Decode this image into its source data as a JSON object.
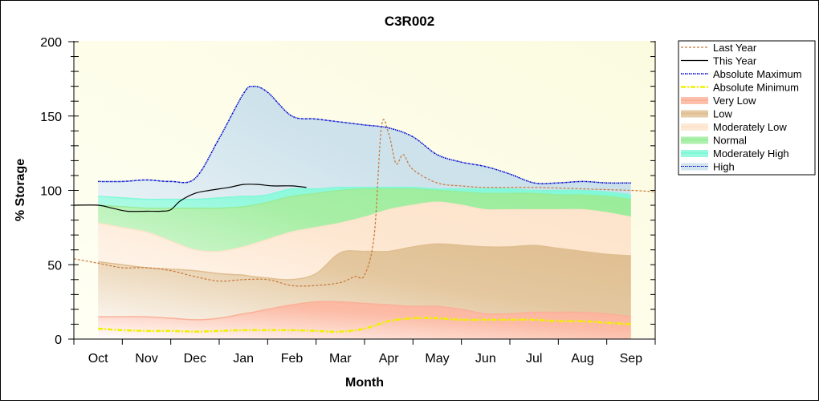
{
  "chart_data": {
    "type": "area",
    "title": "C3R002",
    "xlabel": "Month",
    "ylabel": "% Storage",
    "ylim": [
      0,
      200
    ],
    "yticks": [
      0,
      50,
      100,
      150,
      200
    ],
    "categories": [
      "Oct",
      "Nov",
      "Dec",
      "Jan",
      "Feb",
      "Mar",
      "Apr",
      "May",
      "Jun",
      "Jul",
      "Aug",
      "Sep"
    ],
    "legend_position": "right",
    "band_x": [
      0,
      0.5,
      1,
      1.5,
      2,
      2.5,
      3,
      3.2,
      3.5,
      4,
      4.5,
      5,
      5.5,
      6,
      6.5,
      7,
      7.5,
      8,
      8.5,
      9,
      9.5,
      10,
      10.5,
      11
    ],
    "bands": [
      {
        "name": "High",
        "color": "#c6deea",
        "values": [
          106,
          106,
          107,
          106,
          108,
          135,
          165,
          170,
          166,
          150,
          148,
          146,
          144,
          142,
          136,
          124,
          119,
          116,
          111,
          105,
          105,
          106,
          105,
          105
        ]
      },
      {
        "name": "Moderately High",
        "color": "#80f8d8",
        "values": [
          96,
          95,
          94,
          94,
          94,
          95,
          96,
          96,
          97,
          101,
          101,
          102,
          102,
          102,
          102,
          101,
          101,
          101,
          101,
          100,
          100,
          100,
          99,
          97
        ]
      },
      {
        "name": "Normal",
        "color": "#98ec98",
        "values": [
          90,
          89,
          88,
          88,
          88,
          88,
          89,
          90,
          92,
          96,
          98,
          100,
          101,
          101,
          101,
          100,
          99,
          98,
          98,
          98,
          97,
          97,
          96,
          94
        ]
      },
      {
        "name": "Moderately Low",
        "color": "#fde3cb",
        "values": [
          78,
          75,
          72,
          66,
          60,
          59,
          62,
          64,
          67,
          72,
          75,
          78,
          82,
          87,
          90,
          92,
          90,
          87,
          87,
          87,
          87,
          87,
          85,
          82
        ]
      },
      {
        "name": "Low",
        "color": "#dfbe90",
        "values": [
          52,
          50,
          48,
          47,
          46,
          44,
          43,
          42,
          41,
          40,
          44,
          58,
          59,
          59,
          62,
          64,
          63,
          62,
          62,
          63,
          61,
          59,
          57,
          56
        ]
      },
      {
        "name": "Very Low",
        "color": "#fbb098",
        "values": [
          15,
          15,
          15,
          14,
          13,
          14,
          17,
          18,
          20,
          23,
          25,
          25,
          24,
          23,
          22,
          22,
          20,
          17,
          17,
          18,
          18,
          18,
          17,
          15
        ]
      }
    ],
    "series": [
      {
        "name": "Last Year",
        "color": "#c8783a",
        "x": [
          -0.5,
          0,
          0.5,
          1,
          1.5,
          2,
          2.5,
          3,
          3.5,
          4,
          4.5,
          5,
          5.3,
          5.5,
          5.7,
          5.85,
          6,
          6.15,
          6.3,
          6.5,
          7,
          7.5,
          8,
          9,
          10,
          11,
          11.5
        ],
        "values": [
          54,
          51,
          48,
          48,
          46,
          42,
          39,
          40,
          40,
          36,
          36,
          38,
          42,
          43,
          70,
          143,
          138,
          118,
          124,
          114,
          105,
          103,
          102,
          102,
          101,
          100,
          99
        ]
      },
      {
        "name": "This Year",
        "color": "#000000",
        "x": [
          -0.5,
          0,
          0.3,
          0.6,
          1,
          1.3,
          1.5,
          1.7,
          2,
          2.3,
          2.7,
          3,
          3.3,
          3.6,
          4,
          4.3
        ],
        "values": [
          90,
          90,
          88,
          86,
          86,
          86,
          87,
          93,
          98,
          100,
          102,
          104,
          104,
          103,
          103,
          102
        ]
      },
      {
        "name": "Absolute Maximum",
        "color": "#0000cc",
        "ref": "High"
      },
      {
        "name": "Absolute Minimum",
        "color": "#f0f000",
        "x": [
          0,
          0.5,
          1,
          1.5,
          2,
          2.5,
          3,
          3.5,
          4,
          4.5,
          5,
          5.5,
          6,
          6.5,
          7,
          7.5,
          8,
          8.5,
          9,
          9.5,
          10,
          10.5,
          11
        ],
        "values": [
          7,
          6,
          5.5,
          5.5,
          5,
          5.5,
          6,
          6,
          6,
          5.5,
          5,
          7,
          12,
          14,
          14,
          13,
          13,
          13,
          13,
          12,
          12,
          11,
          10
        ]
      }
    ],
    "legend": [
      "Last Year",
      "This Year",
      "Absolute Maximum",
      "Absolute Minimum",
      "Very Low",
      "Low",
      "Moderately Low",
      "Normal",
      "Moderately High",
      "High"
    ]
  }
}
